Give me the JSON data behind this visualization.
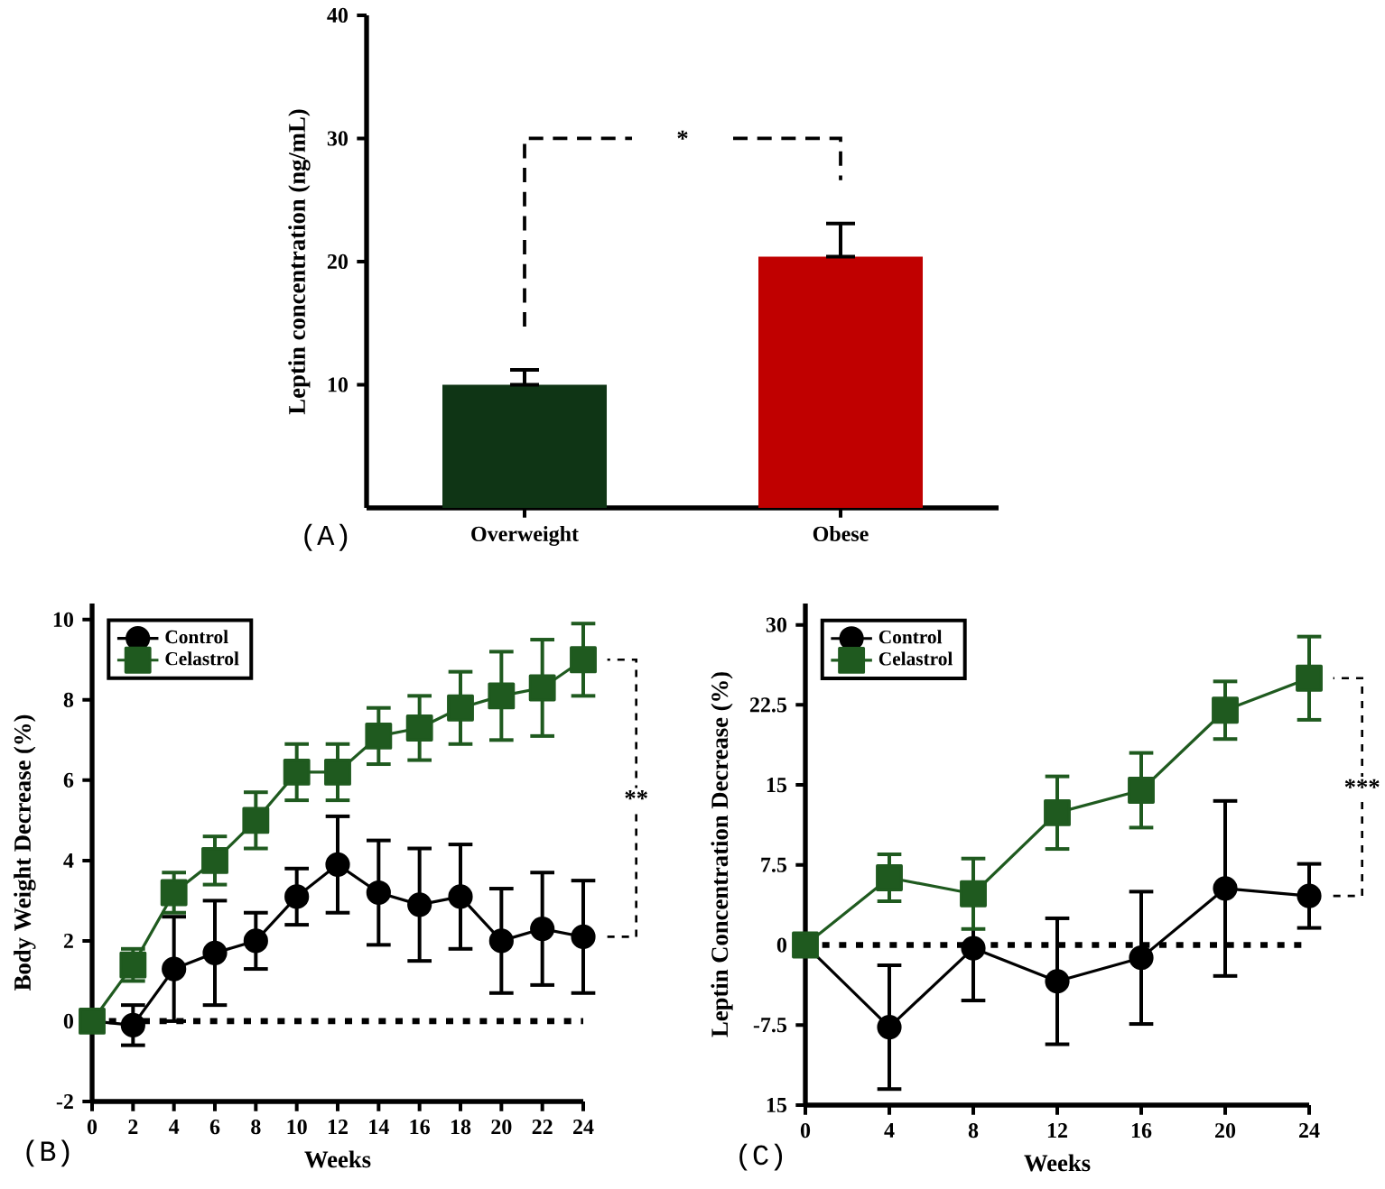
{
  "chart_data": [
    {
      "type": "bar",
      "ylabel": "Leptin concentration (ng/mL)",
      "categories": [
        "Overweight",
        "Obese"
      ],
      "values": [
        10,
        20.4
      ],
      "colors": [
        "#0f3515",
        "#c00000"
      ],
      "errors": [
        [
          10,
          11.2
        ],
        [
          20.4,
          23.1
        ]
      ],
      "ylim": [
        0,
        40
      ],
      "yticks": [
        10,
        20,
        30,
        40
      ],
      "annotations": [
        "(A)",
        "*"
      ]
    },
    {
      "type": "line",
      "xlabel": "Weeks",
      "ylabel": "Body Weight Decrease (%)",
      "xlim": [
        0,
        24
      ],
      "ylim": [
        -2,
        10.4
      ],
      "xticks": [
        0,
        2,
        4,
        6,
        8,
        10,
        12,
        14,
        16,
        18,
        20,
        22,
        24
      ],
      "yticks": [
        -2,
        0,
        2,
        4,
        6,
        8,
        10
      ],
      "legend": "top left",
      "ref_lines": [
        {
          "axis": "y",
          "value": 0,
          "line_style": "dotted"
        }
      ],
      "annotations": [
        "(B)",
        "**"
      ],
      "series": [
        {
          "name": "Control",
          "color": "#000000",
          "marker": "circle",
          "x": [
            0,
            2,
            4,
            6,
            8,
            10,
            12,
            14,
            16,
            18,
            20,
            22,
            24
          ],
          "values": [
            0,
            -0.1,
            1.3,
            1.7,
            2.0,
            3.1,
            3.9,
            3.2,
            2.9,
            3.1,
            2.0,
            2.3,
            2.1
          ],
          "errors": [
            null,
            0.5,
            1.3,
            1.3,
            0.7,
            0.7,
            1.2,
            1.3,
            1.4,
            1.3,
            1.3,
            1.4,
            1.4
          ]
        },
        {
          "name": "Celastrol",
          "color": "#1f5a1f",
          "marker": "square",
          "x": [
            0,
            2,
            4,
            6,
            8,
            10,
            12,
            14,
            16,
            18,
            20,
            22,
            24
          ],
          "values": [
            0,
            1.4,
            3.2,
            4.0,
            5.0,
            6.2,
            6.2,
            7.1,
            7.3,
            7.8,
            8.1,
            8.3,
            9.0
          ],
          "errors": [
            null,
            0.4,
            0.5,
            0.6,
            0.7,
            0.7,
            0.7,
            0.7,
            0.8,
            0.9,
            1.1,
            1.2,
            0.9
          ]
        }
      ]
    },
    {
      "type": "line",
      "xlabel": "Weeks",
      "ylabel": "Leptin Concentration Decrease (%)",
      "xlim": [
        0,
        24
      ],
      "ylim": [
        -15,
        32
      ],
      "xticks": [
        0,
        4,
        8,
        12,
        16,
        20,
        24
      ],
      "yticks": [
        {
          "value": -15,
          "label": "15"
        },
        -7.5,
        0,
        7.5,
        15,
        22.5,
        30
      ],
      "legend": "top left",
      "ref_lines": [
        {
          "axis": "y",
          "value": 0,
          "line_style": "dotted"
        }
      ],
      "annotations": [
        "(C)",
        "***"
      ],
      "series": [
        {
          "name": "Control",
          "color": "#000000",
          "marker": "circle",
          "x": [
            0,
            4,
            8,
            12,
            16,
            20,
            24
          ],
          "values": [
            0,
            -7.7,
            -0.3,
            -3.4,
            -1.2,
            5.3,
            4.6
          ],
          "errors": [
            null,
            5.8,
            4.9,
            5.9,
            6.2,
            8.2,
            3.0
          ]
        },
        {
          "name": "Celastrol",
          "color": "#1f5a1f",
          "marker": "square",
          "x": [
            0,
            4,
            8,
            12,
            16,
            20,
            24
          ],
          "values": [
            0,
            6.3,
            4.8,
            12.4,
            14.5,
            22.0,
            25.0
          ],
          "errors": [
            null,
            2.2,
            3.3,
            3.4,
            3.5,
            2.7,
            3.9
          ]
        }
      ]
    }
  ]
}
